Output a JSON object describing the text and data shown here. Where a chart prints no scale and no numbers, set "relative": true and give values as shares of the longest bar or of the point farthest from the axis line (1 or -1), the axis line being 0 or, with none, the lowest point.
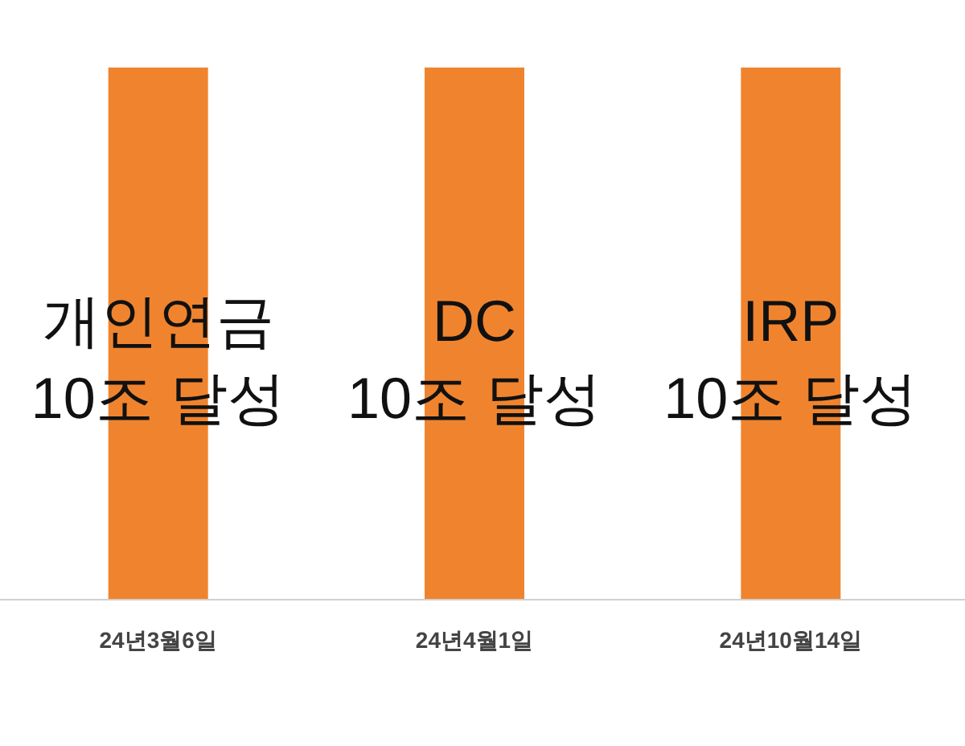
{
  "chart_data": {
    "type": "bar",
    "relative": true,
    "categories": [
      "24년3월6일",
      "24년4월1일",
      "24년10월14일"
    ],
    "values": [
      1,
      1,
      1
    ],
    "color": "#f0842e",
    "annotations": [
      "개인연금\n10조 달성",
      "DC\n10조 달성",
      "IRP\n10조 달성"
    ]
  }
}
